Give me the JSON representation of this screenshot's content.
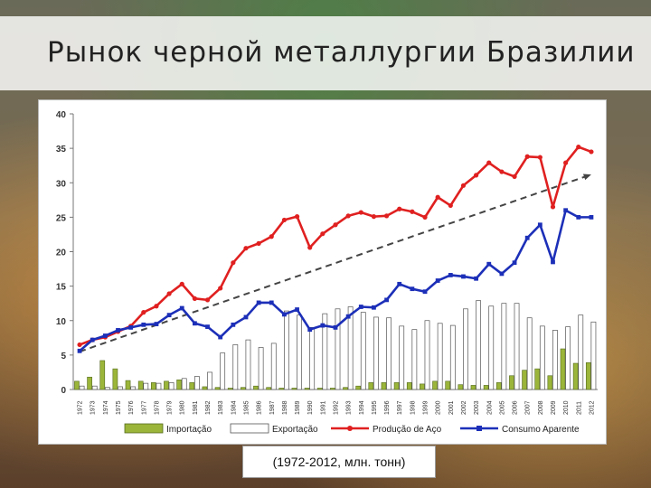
{
  "slide": {
    "title": "Рынок черной металлургии Бразилии",
    "note": "(1972-2012, млн. тонн)"
  },
  "chart_data": {
    "type": "bar",
    "x": [
      "1972",
      "1973",
      "1974",
      "1975",
      "1976",
      "1977",
      "1978",
      "1979",
      "1980",
      "1981",
      "1982",
      "1983",
      "1984",
      "1985",
      "1986",
      "1987",
      "1988",
      "1989",
      "1990",
      "1991",
      "1992",
      "1993",
      "1994",
      "1995",
      "1996",
      "1997",
      "1998",
      "1999",
      "2000",
      "2001",
      "2002",
      "2003",
      "2004",
      "2005",
      "2006",
      "2007",
      "2008",
      "2009",
      "2010",
      "2011",
      "2012"
    ],
    "ylim": [
      0,
      40
    ],
    "yticks": [
      0,
      5,
      10,
      15,
      20,
      25,
      30,
      35,
      40
    ],
    "grid": false,
    "legend_position": "bottom",
    "colors": {
      "importacao": "#9bb53a",
      "exportacao": "#ffffff",
      "producao": "#e02020",
      "consumo": "#1c2fb8",
      "trend": "#444444"
    },
    "series": [
      {
        "name": "Importação",
        "type": "bar",
        "values": [
          1.2,
          1.8,
          4.2,
          3.0,
          1.3,
          1.2,
          1.0,
          1.2,
          1.4,
          1.0,
          0.4,
          0.3,
          0.2,
          0.3,
          0.5,
          0.3,
          0.2,
          0.2,
          0.2,
          0.2,
          0.2,
          0.3,
          0.5,
          1.0,
          1.0,
          1.0,
          1.0,
          0.8,
          1.2,
          1.2,
          0.7,
          0.6,
          0.6,
          1.0,
          2.0,
          2.8,
          3.0,
          2.0,
          5.9,
          3.8,
          3.9
        ]
      },
      {
        "name": "Exportação",
        "type": "bar",
        "values": [
          0.5,
          0.5,
          0.3,
          0.4,
          0.4,
          0.9,
          0.9,
          1.0,
          1.6,
          1.9,
          2.5,
          5.3,
          6.5,
          7.2,
          6.1,
          6.7,
          11.4,
          10.8,
          9.0,
          11.0,
          11.7,
          12.0,
          11.2,
          10.5,
          10.4,
          9.2,
          8.7,
          10.0,
          9.6,
          9.3,
          11.7,
          12.9,
          12.1,
          12.5,
          12.5,
          10.4,
          9.2,
          8.6,
          9.1,
          10.8,
          9.8
        ]
      },
      {
        "name": "Produção de Aço",
        "type": "line",
        "values": [
          6.5,
          7.2,
          7.6,
          8.4,
          9.2,
          11.2,
          12.1,
          13.9,
          15.3,
          13.2,
          13.0,
          14.7,
          18.4,
          20.5,
          21.2,
          22.2,
          24.6,
          25.1,
          20.6,
          22.6,
          23.9,
          25.2,
          25.7,
          25.1,
          25.2,
          26.2,
          25.8,
          25.0,
          27.9,
          26.7,
          29.6,
          31.1,
          32.9,
          31.6,
          30.9,
          33.8,
          33.7,
          26.5,
          32.9,
          35.2,
          34.5
        ]
      },
      {
        "name": "Consumo Aparente",
        "type": "line",
        "values": [
          5.6,
          7.2,
          7.8,
          8.6,
          9.0,
          9.4,
          9.5,
          10.8,
          11.8,
          9.6,
          9.1,
          7.6,
          9.4,
          10.5,
          12.6,
          12.6,
          10.9,
          11.6,
          8.7,
          9.3,
          9.0,
          10.6,
          12.0,
          11.9,
          13.0,
          15.3,
          14.6,
          14.2,
          15.8,
          16.6,
          16.4,
          16.1,
          18.2,
          16.8,
          18.4,
          22.0,
          23.9,
          18.5,
          26.0,
          25.0,
          25.0
        ]
      }
    ],
    "trend": {
      "from": [
        1972,
        5.5
      ],
      "to": [
        2012,
        31.2
      ],
      "style": "dashed-arrow"
    }
  }
}
